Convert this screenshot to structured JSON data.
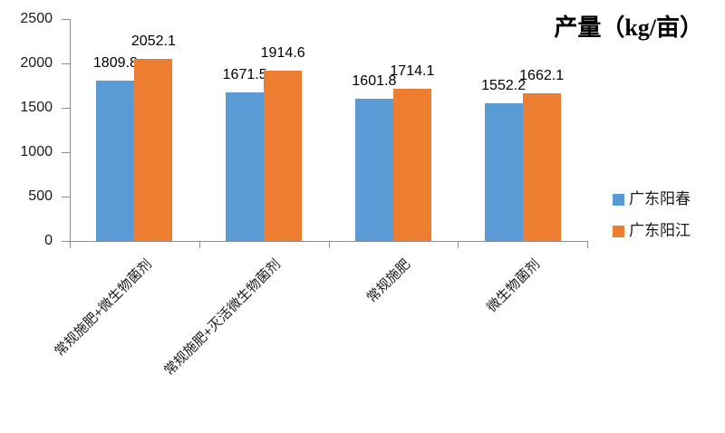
{
  "chart_data": {
    "type": "bar",
    "title": "产量（kg/亩）",
    "categories": [
      "常规施肥+微生物菌剂",
      "常规施肥+灭活微生物菌剂",
      "常规施肥",
      "微生物菌剂"
    ],
    "series": [
      {
        "name": "广东阳春",
        "color": "#5B9BD5",
        "values": [
          1809.8,
          1671.5,
          1601.8,
          1552.2
        ]
      },
      {
        "name": "广东阳江",
        "color": "#ED7D31",
        "values": [
          2052.1,
          1914.6,
          1714.1,
          1662.1
        ]
      }
    ],
    "xlabel": "",
    "ylabel": "",
    "ylim": [
      0,
      2500
    ],
    "ytick_step": 500,
    "ytick_labels": [
      "0",
      "500",
      "1000",
      "1500",
      "2000",
      "2500"
    ],
    "grid": false,
    "value_labels": true,
    "legend_position": "right",
    "axis_color": "#8C8C8C",
    "text_color": "#1A1A1A",
    "background_color": "#FFFFFF"
  }
}
